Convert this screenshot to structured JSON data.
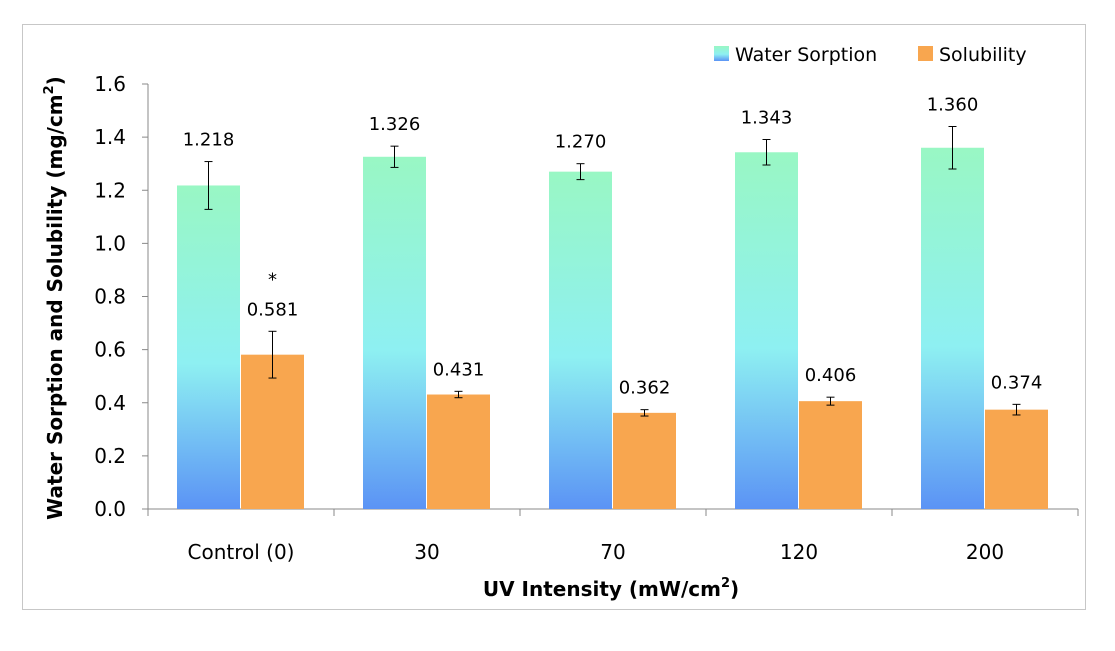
{
  "chart_data": {
    "type": "bar",
    "xlabel": "UV Intensity (mW/cm",
    "xlabel_sup": "2",
    "xlabel_close": ")",
    "ylabel": "Water Sorption and Solubility (mg/cm",
    "ylabel_sup": "2",
    "ylabel_close": ")",
    "ylim": [
      0,
      1.6
    ],
    "yticks": [
      "0.0",
      "0.2",
      "0.4",
      "0.6",
      "0.8",
      "1.0",
      "1.2",
      "1.4",
      "1.6"
    ],
    "categories": [
      "Control (0)",
      "30",
      "70",
      "120",
      "200"
    ],
    "legend_position": "top-right",
    "grid": false,
    "series": [
      {
        "name": "Water Sorption",
        "colors": {
          "top": "#99f7c4",
          "mid": "#8ef0f2",
          "bottom": "#5b93f5"
        },
        "values": [
          1.218,
          1.326,
          1.27,
          1.343,
          1.36
        ],
        "labels": [
          "1.218",
          "1.326",
          "1.270",
          "1.343",
          "1.360"
        ],
        "errors": [
          0.09,
          0.04,
          0.03,
          0.048,
          0.08
        ]
      },
      {
        "name": "Solubility",
        "colors": {
          "fill": "#f8a64f"
        },
        "values": [
          0.581,
          0.431,
          0.362,
          0.406,
          0.374
        ],
        "labels": [
          "0.581",
          "0.431",
          "0.362",
          "0.406",
          "0.374"
        ],
        "errors": [
          0.088,
          0.012,
          0.012,
          0.015,
          0.02
        ]
      }
    ],
    "annotations": [
      {
        "category": "Control (0)",
        "series": "Solubility",
        "text": "*"
      }
    ]
  }
}
